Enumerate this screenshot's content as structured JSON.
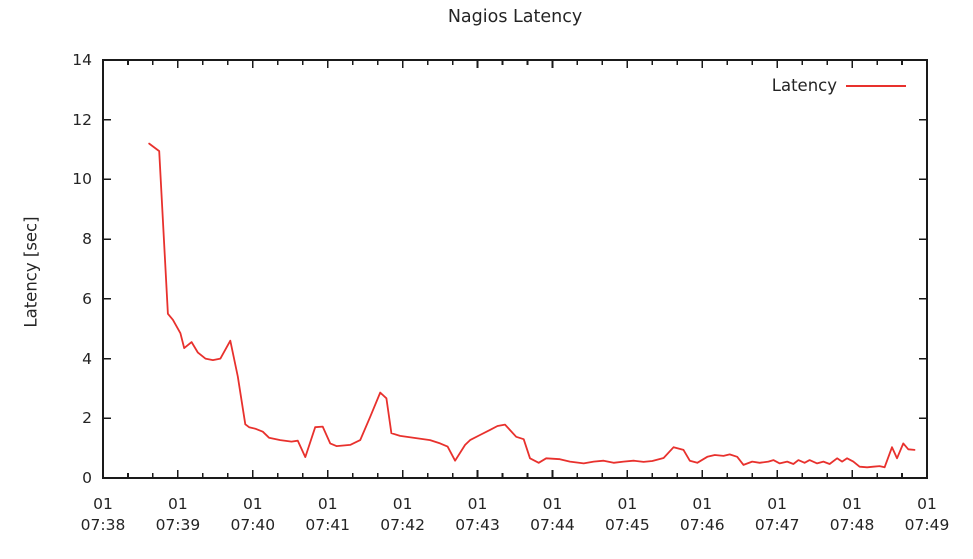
{
  "title": "Nagios Latency",
  "y_axis": {
    "label": "Latency [sec]",
    "min": 0,
    "max": 14,
    "tick_step": 2,
    "ticks": [
      0,
      2,
      4,
      6,
      8,
      10,
      12,
      14
    ]
  },
  "x_axis": {
    "date_label": "01",
    "tick_times": [
      "07:38",
      "07:39",
      "07:40",
      "07:41",
      "07:42",
      "07:43",
      "07:44",
      "07:45",
      "07:46",
      "07:47",
      "07:48",
      "07:49"
    ],
    "minor_ticks_per_major": 2,
    "seconds_per_major": 60,
    "range_seconds": [
      0,
      660
    ]
  },
  "legend": {
    "label": "Latency",
    "position": "top-right-inside"
  },
  "colors": {
    "series": "#e8312d",
    "axis": "#1a1a1a",
    "text": "#242424",
    "background": "#ffffff"
  },
  "chart_data": {
    "type": "line",
    "title": "Nagios Latency",
    "xlabel": "",
    "ylabel": "Latency [sec]",
    "ylim": [
      0,
      14
    ],
    "x_unit": "seconds after 01 07:38",
    "x_tick_labels": [
      "01 07:38",
      "01 07:39",
      "01 07:40",
      "01 07:41",
      "01 07:42",
      "01 07:43",
      "01 07:44",
      "01 07:45",
      "01 07:46",
      "01 07:47",
      "01 07:48",
      "01 07:49"
    ],
    "grid": false,
    "legend_position": "top-right-inside",
    "series": [
      {
        "name": "Latency",
        "color": "#e8312d",
        "points": [
          [
            37,
            11.2
          ],
          [
            45,
            10.95
          ],
          [
            52,
            5.5
          ],
          [
            56,
            5.3
          ],
          [
            62,
            4.85
          ],
          [
            65,
            4.35
          ],
          [
            71,
            4.55
          ],
          [
            76,
            4.2
          ],
          [
            82,
            4.0
          ],
          [
            88,
            3.95
          ],
          [
            94,
            4.0
          ],
          [
            102,
            4.6
          ],
          [
            108,
            3.4
          ],
          [
            114,
            1.8
          ],
          [
            117,
            1.7
          ],
          [
            122,
            1.65
          ],
          [
            128,
            1.55
          ],
          [
            133,
            1.35
          ],
          [
            142,
            1.27
          ],
          [
            151,
            1.22
          ],
          [
            156,
            1.25
          ],
          [
            162,
            0.7
          ],
          [
            170,
            1.7
          ],
          [
            176,
            1.72
          ],
          [
            182,
            1.16
          ],
          [
            187,
            1.07
          ],
          [
            198,
            1.11
          ],
          [
            206,
            1.27
          ],
          [
            214,
            2.05
          ],
          [
            222,
            2.86
          ],
          [
            227,
            2.67
          ],
          [
            231,
            1.5
          ],
          [
            238,
            1.41
          ],
          [
            250,
            1.34
          ],
          [
            262,
            1.27
          ],
          [
            270,
            1.16
          ],
          [
            276,
            1.05
          ],
          [
            282,
            0.58
          ],
          [
            290,
            1.11
          ],
          [
            294,
            1.27
          ],
          [
            302,
            1.44
          ],
          [
            310,
            1.61
          ],
          [
            316,
            1.74
          ],
          [
            322,
            1.79
          ],
          [
            331,
            1.38
          ],
          [
            337,
            1.3
          ],
          [
            342,
            0.66
          ],
          [
            349,
            0.51
          ],
          [
            355,
            0.66
          ],
          [
            366,
            0.63
          ],
          [
            374,
            0.55
          ],
          [
            385,
            0.49
          ],
          [
            393,
            0.55
          ],
          [
            401,
            0.58
          ],
          [
            409,
            0.51
          ],
          [
            417,
            0.55
          ],
          [
            425,
            0.58
          ],
          [
            433,
            0.54
          ],
          [
            440,
            0.57
          ],
          [
            449,
            0.67
          ],
          [
            457,
            1.03
          ],
          [
            465,
            0.94
          ],
          [
            470,
            0.58
          ],
          [
            476,
            0.51
          ],
          [
            484,
            0.71
          ],
          [
            490,
            0.77
          ],
          [
            497,
            0.74
          ],
          [
            502,
            0.79
          ],
          [
            508,
            0.71
          ],
          [
            513,
            0.44
          ],
          [
            520,
            0.55
          ],
          [
            526,
            0.51
          ],
          [
            533,
            0.55
          ],
          [
            537,
            0.6
          ],
          [
            542,
            0.49
          ],
          [
            548,
            0.55
          ],
          [
            553,
            0.47
          ],
          [
            557,
            0.6
          ],
          [
            562,
            0.51
          ],
          [
            566,
            0.6
          ],
          [
            572,
            0.49
          ],
          [
            577,
            0.55
          ],
          [
            582,
            0.47
          ],
          [
            588,
            0.66
          ],
          [
            592,
            0.55
          ],
          [
            596,
            0.66
          ],
          [
            601,
            0.55
          ],
          [
            606,
            0.38
          ],
          [
            612,
            0.36
          ],
          [
            617,
            0.38
          ],
          [
            622,
            0.4
          ],
          [
            626,
            0.36
          ],
          [
            632,
            1.03
          ],
          [
            636,
            0.66
          ],
          [
            641,
            1.16
          ],
          [
            645,
            0.96
          ],
          [
            650,
            0.94
          ]
        ]
      }
    ]
  }
}
